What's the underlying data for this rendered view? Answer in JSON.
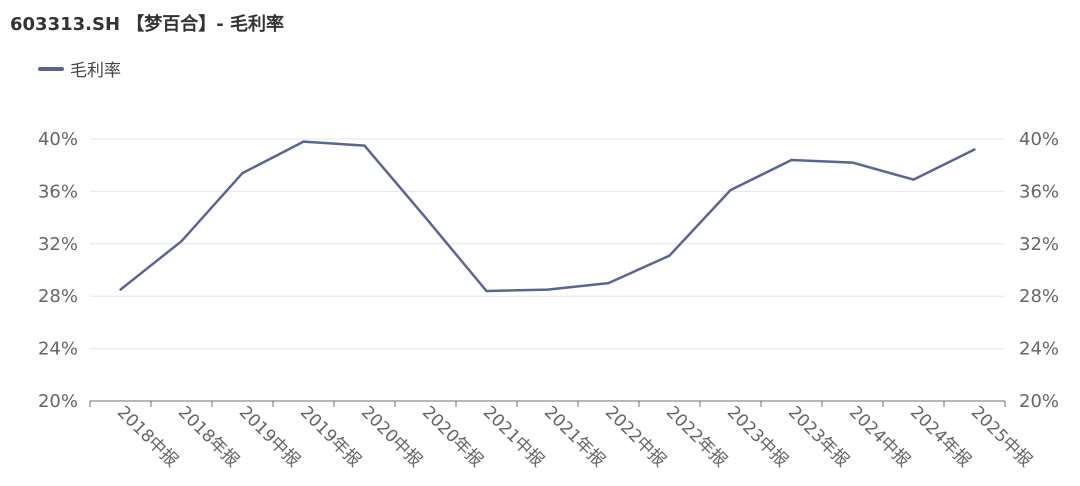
{
  "header": {
    "title": "603313.SH 【梦百合】- 毛利率"
  },
  "colors": {
    "series": "#5a6499",
    "grid": "#e4e6ee",
    "axis": "#6e7079",
    "text": "#666666"
  },
  "chart_data": {
    "type": "line",
    "title": "603313.SH 【梦百合】- 毛利率",
    "xlabel": "",
    "ylabel": "",
    "categories": [
      "2018中报",
      "2018年报",
      "2019中报",
      "2019年报",
      "2020中报",
      "2020年报",
      "2021中报",
      "2021年报",
      "2022中报",
      "2022年报",
      "2023中报",
      "2023年报",
      "2024中报",
      "2024年报",
      "2025中报"
    ],
    "series": [
      {
        "name": "毛利率",
        "values": [
          28.5,
          32.2,
          37.4,
          39.8,
          39.5,
          34.0,
          28.4,
          28.5,
          29.0,
          31.1,
          36.1,
          38.4,
          38.2,
          36.9,
          39.2
        ]
      }
    ],
    "ylim": [
      20,
      40
    ],
    "yticks": [
      "20%",
      "24%",
      "28%",
      "32%",
      "36%",
      "40%"
    ],
    "ytick_values": [
      20,
      24,
      28,
      32,
      36,
      40
    ],
    "grid": true,
    "legend_position": "top-left",
    "dual_y_axis": true
  }
}
